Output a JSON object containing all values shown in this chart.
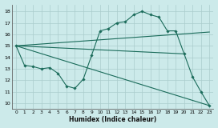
{
  "xlabel": "Humidex (Indice chaleur)",
  "bg_color": "#cceaea",
  "line_color": "#1a6b5a",
  "grid_color": "#aacccc",
  "xlim": [
    -0.5,
    23.5
  ],
  "ylim": [
    9.5,
    18.6
  ],
  "xticks": [
    0,
    1,
    2,
    3,
    4,
    5,
    6,
    7,
    8,
    9,
    10,
    11,
    12,
    13,
    14,
    15,
    16,
    17,
    18,
    19,
    20,
    21,
    22,
    23
  ],
  "yticks": [
    10,
    11,
    12,
    13,
    14,
    15,
    16,
    17,
    18
  ],
  "series": [
    {
      "x": [
        0,
        1,
        2,
        3,
        4,
        5,
        6,
        7,
        8,
        9,
        10,
        11,
        12,
        13,
        14,
        15,
        16,
        17,
        18,
        19,
        20,
        21,
        22,
        23
      ],
      "y": [
        15,
        13.3,
        13.2,
        13.0,
        13.1,
        12.6,
        11.5,
        11.3,
        12.1,
        14.2,
        16.3,
        16.5,
        17.0,
        17.1,
        17.7,
        18.0,
        17.7,
        17.5,
        16.3,
        16.3,
        14.3,
        12.3,
        11.0,
        9.8
      ],
      "has_markers": true
    },
    {
      "x": [
        0,
        23
      ],
      "y": [
        15,
        16.2
      ],
      "has_markers": false
    },
    {
      "x": [
        0,
        20
      ],
      "y": [
        15,
        14.3
      ],
      "has_markers": false
    },
    {
      "x": [
        0,
        23
      ],
      "y": [
        15,
        9.8
      ],
      "has_markers": false
    }
  ]
}
